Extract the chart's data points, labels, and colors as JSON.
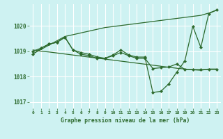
{
  "hours": [
    0,
    1,
    2,
    3,
    4,
    5,
    6,
    7,
    8,
    9,
    10,
    11,
    12,
    13,
    14,
    15,
    16,
    17,
    18,
    19,
    20,
    21,
    22,
    23
  ],
  "line_straight_top": [
    1018.9,
    1019.07,
    1019.24,
    1019.41,
    1019.58,
    1019.65,
    1019.72,
    1019.79,
    1019.86,
    1019.93,
    1019.97,
    1020.01,
    1020.05,
    1020.09,
    1020.13,
    1020.17,
    1020.21,
    1020.25,
    1020.29,
    1020.33,
    1020.37,
    1020.41,
    1020.5,
    1020.62
  ],
  "line_straight_bot": [
    1019.05,
    1019.0,
    1018.97,
    1018.93,
    1018.89,
    1018.85,
    1018.81,
    1018.77,
    1018.73,
    1018.69,
    1018.65,
    1018.61,
    1018.57,
    1018.53,
    1018.49,
    1018.45,
    1018.41,
    1018.37,
    1018.33,
    1018.3,
    1018.27,
    1018.25,
    1018.3,
    1018.3
  ],
  "line_jagged1": [
    1018.88,
    1019.12,
    1019.28,
    1019.35,
    1019.55,
    1019.05,
    1018.88,
    1018.83,
    1018.72,
    1018.72,
    1018.85,
    1019.05,
    1018.85,
    1018.77,
    1018.77,
    1017.38,
    1017.42,
    1017.72,
    1018.18,
    1018.62,
    1019.98,
    1019.15,
    1020.48,
    1020.62
  ],
  "line_jagged2": [
    1019.0,
    1019.12,
    1019.28,
    1019.35,
    1019.55,
    1019.05,
    1018.95,
    1018.88,
    1018.78,
    1018.72,
    1018.82,
    1018.95,
    1018.82,
    1018.72,
    1018.72,
    1018.32,
    1018.35,
    1018.38,
    1018.5,
    1018.28,
    1018.28,
    1018.28,
    1018.28,
    1018.28
  ],
  "background_color": "#cef2f2",
  "line_color": "#2d6a2d",
  "grid_color": "#b8e8e8",
  "xlabel": "Graphe pression niveau de la mer (hPa)",
  "tick_label_color": "#2d6a2d",
  "ylim_min": 1016.75,
  "ylim_max": 1020.85,
  "yticks": [
    1017,
    1018,
    1019,
    1020
  ],
  "dpi": 100
}
